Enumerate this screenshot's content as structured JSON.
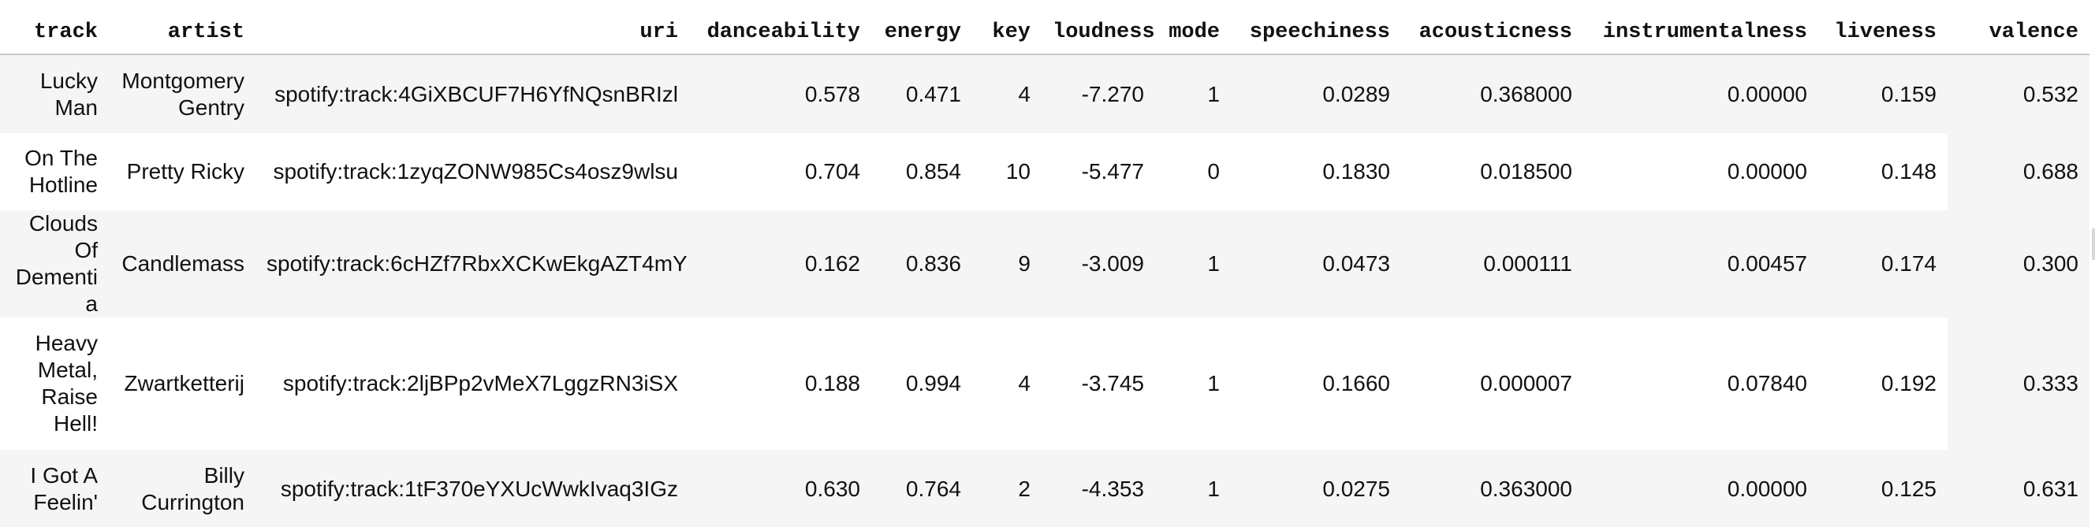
{
  "table": {
    "columns": [
      "track",
      "artist",
      "uri",
      "danceability",
      "energy",
      "key",
      "loudness",
      "mode",
      "speechiness",
      "acousticness",
      "instrumentalness",
      "liveness",
      "valence"
    ],
    "rows": [
      [
        "Lucky Man",
        "Montgomery Gentry",
        "spotify:track:4GiXBCUF7H6YfNQsnBRIzl",
        "0.578",
        "0.471",
        "4",
        "-7.270",
        "1",
        "0.0289",
        "0.368000",
        "0.00000",
        "0.159",
        "0.532"
      ],
      [
        "On The Hotline",
        "Pretty Ricky",
        "spotify:track:1zyqZONW985Cs4osz9wlsu",
        "0.704",
        "0.854",
        "10",
        "-5.477",
        "0",
        "0.1830",
        "0.018500",
        "0.00000",
        "0.148",
        "0.688"
      ],
      [
        "Clouds Of Dementia",
        "Candlemass",
        "spotify:track:6cHZf7RbxXCKwEkgAZT4mY",
        "0.162",
        "0.836",
        "9",
        "-3.009",
        "1",
        "0.0473",
        "0.000111",
        "0.00457",
        "0.174",
        "0.300"
      ],
      [
        "Heavy Metal, Raise Hell!",
        "Zwartketterij",
        "spotify:track:2ljBPp2vMeX7LggzRN3iSX",
        "0.188",
        "0.994",
        "4",
        "-3.745",
        "1",
        "0.1660",
        "0.000007",
        "0.07840",
        "0.192",
        "0.333"
      ],
      [
        "I Got A Feelin'",
        "Billy Currington",
        "spotify:track:1tF370eYXUcWwkIvaq3IGz",
        "0.630",
        "0.764",
        "2",
        "-4.353",
        "1",
        "0.0275",
        "0.363000",
        "0.00000",
        "0.125",
        "0.631"
      ]
    ]
  }
}
